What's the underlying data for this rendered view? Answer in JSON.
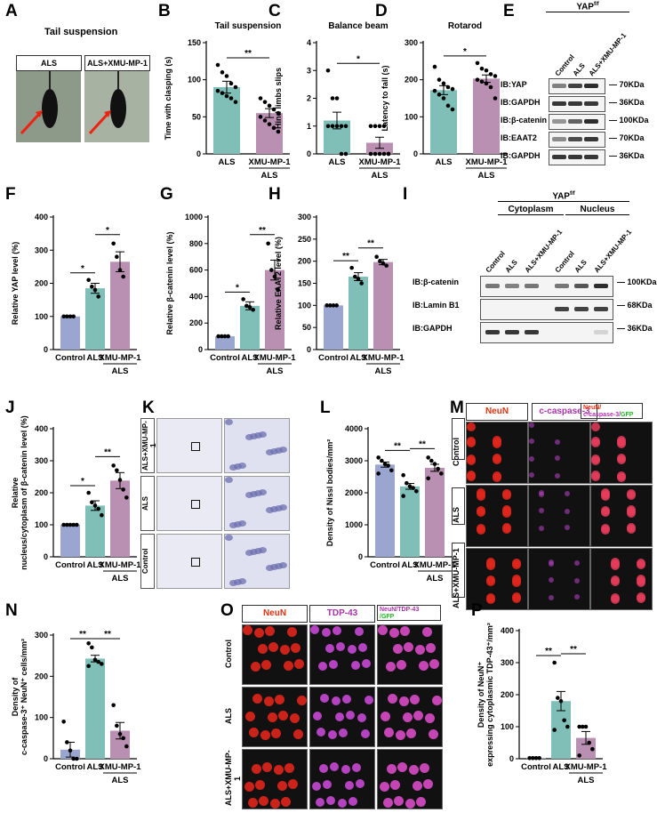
{
  "panels": {
    "A": {
      "letter": "A",
      "title": "Tail suspension",
      "labels": [
        "ALS",
        "ALS+XMU-MP-1"
      ]
    },
    "B": {
      "letter": "B",
      "chart_data": {
        "type": "bar",
        "title": "Tail suspension",
        "ylabel": "Time with clasping (s)",
        "categories": [
          "ALS",
          "XMU-MP-1"
        ],
        "group_label": "ALS",
        "values": [
          90,
          55
        ],
        "sem": [
          8,
          6
        ],
        "ylim": [
          0,
          150
        ],
        "yticks": [
          0,
          50,
          100,
          150
        ],
        "points": [
          [
            120,
            110,
            105,
            95,
            90,
            85,
            82,
            78,
            75,
            70
          ],
          [
            75,
            70,
            65,
            60,
            55,
            50,
            45,
            40,
            35,
            30
          ]
        ],
        "significance": [
          {
            "pair": [
              0,
              1
            ],
            "text": "**"
          }
        ],
        "colors": [
          "#7fbfb8",
          "#b98fb2"
        ]
      }
    },
    "C": {
      "letter": "C",
      "chart_data": {
        "type": "bar",
        "title": "Balance beam",
        "ylabel": "Hind limbs slips",
        "categories": [
          "ALS",
          "XMU-MP-1"
        ],
        "group_label": "ALS",
        "values": [
          1.2,
          0.4
        ],
        "sem": [
          0.3,
          0.2
        ],
        "ylim": [
          0,
          4
        ],
        "yticks": [
          0,
          1,
          2,
          3,
          4
        ],
        "points": [
          [
            3,
            2,
            2,
            1,
            1,
            1,
            1,
            1,
            0,
            0
          ],
          [
            1,
            1,
            1,
            1,
            0,
            0,
            0,
            0,
            0,
            0
          ]
        ],
        "significance": [
          {
            "pair": [
              0,
              1
            ],
            "text": "*"
          }
        ],
        "colors": [
          "#7fbfb8",
          "#b98fb2"
        ]
      }
    },
    "D": {
      "letter": "D",
      "chart_data": {
        "type": "bar",
        "title": "Rotarod",
        "ylabel": "Latency to fall (s)",
        "categories": [
          "ALS",
          "XMU-MP-1"
        ],
        "group_label": "ALS",
        "values": [
          172,
          203
        ],
        "sem": [
          12,
          10
        ],
        "ylim": [
          0,
          300
        ],
        "yticks": [
          0,
          100,
          200,
          300
        ],
        "points": [
          [
            235,
            200,
            190,
            180,
            175,
            170,
            160,
            150,
            130,
            120
          ],
          [
            245,
            230,
            225,
            215,
            210,
            200,
            195,
            190,
            180,
            150
          ]
        ],
        "significance": [
          {
            "pair": [
              0,
              1
            ],
            "text": "*"
          }
        ],
        "colors": [
          "#7fbfb8",
          "#b98fb2"
        ]
      }
    },
    "E": {
      "letter": "E",
      "header": "YAP",
      "header_sup": "f/f",
      "lanes": [
        "Control",
        "ALS",
        "ALS+XMU-MP-1"
      ],
      "rows": [
        {
          "ib": "IB:YAP",
          "size": "70KDa",
          "bands": [
            0.55,
            0.85,
            0.95
          ]
        },
        {
          "ib": "IB:GAPDH",
          "size": "36KDa",
          "bands": [
            0.9,
            0.9,
            0.9
          ]
        },
        {
          "ib": "IB:β-catenin",
          "size": "100KDa",
          "bands": [
            0.45,
            0.7,
            0.95
          ]
        },
        {
          "ib": "IB:EAAT2",
          "size": "70KDa",
          "bands": [
            0.5,
            0.8,
            0.9
          ]
        },
        {
          "ib": "IB:GAPDH",
          "size": "36KDa",
          "bands": [
            0.9,
            0.9,
            0.9
          ]
        }
      ]
    },
    "F": {
      "letter": "F",
      "chart_data": {
        "type": "bar",
        "ylabel": "Relative YAP level (%)",
        "categories": [
          "Control",
          "ALS",
          "XMU-MP-1"
        ],
        "group_label": "ALS",
        "values": [
          100,
          185,
          265
        ],
        "sem": [
          0,
          15,
          30
        ],
        "ylim": [
          0,
          400
        ],
        "yticks": [
          0,
          100,
          200,
          300,
          400
        ],
        "points": [
          [
            100,
            100,
            100,
            100
          ],
          [
            210,
            190,
            180,
            160
          ],
          [
            320,
            280,
            240,
            220
          ]
        ],
        "significance": [
          {
            "pair": [
              0,
              1
            ],
            "text": "*"
          },
          {
            "pair": [
              1,
              2
            ],
            "text": "*"
          }
        ],
        "colors": [
          "#9aa6cf",
          "#7fbfb8",
          "#b98fb2"
        ]
      }
    },
    "G": {
      "letter": "G",
      "chart_data": {
        "type": "bar",
        "ylabel": "Relative β-catenin level (%)",
        "categories": [
          "Control",
          "ALS",
          "XMU-MP-1"
        ],
        "group_label": "ALS",
        "values": [
          100,
          330,
          600
        ],
        "sem": [
          0,
          30,
          75
        ],
        "ylim": [
          0,
          1000
        ],
        "yticks": [
          0,
          200,
          400,
          600,
          800,
          1000
        ],
        "points": [
          [
            100,
            100,
            100,
            100
          ],
          [
            380,
            330,
            320,
            300
          ],
          [
            800,
            600,
            550,
            450
          ]
        ],
        "significance": [
          {
            "pair": [
              0,
              1
            ],
            "text": "*"
          },
          {
            "pair": [
              1,
              2
            ],
            "text": "**"
          }
        ],
        "colors": [
          "#9aa6cf",
          "#7fbfb8",
          "#b98fb2"
        ]
      }
    },
    "H": {
      "letter": "H",
      "chart_data": {
        "type": "bar",
        "ylabel": "Relative EAAT2 level (%)",
        "categories": [
          "Control",
          "ALS",
          "XMU-MP-1"
        ],
        "group_label": "ALS",
        "values": [
          100,
          165,
          198
        ],
        "sem": [
          0,
          9,
          6
        ],
        "ylim": [
          0,
          300
        ],
        "yticks": [
          0,
          50,
          100,
          150,
          200,
          250,
          300
        ],
        "points": [
          [
            100,
            100,
            100,
            100
          ],
          [
            185,
            165,
            160,
            150
          ],
          [
            210,
            200,
            195,
            190
          ]
        ],
        "significance": [
          {
            "pair": [
              0,
              1
            ],
            "text": "**"
          },
          {
            "pair": [
              1,
              2
            ],
            "text": "**"
          }
        ],
        "colors": [
          "#9aa6cf",
          "#7fbfb8",
          "#b98fb2"
        ]
      }
    },
    "I": {
      "letter": "I",
      "header": "YAP",
      "header_sup": "f/f",
      "groups": [
        "Cytoplasm",
        "Nucleus"
      ],
      "lanes": [
        "Control",
        "ALS",
        "ALS+XMU-MP-1",
        "Control",
        "ALS",
        "ALS+XMU-MP-1"
      ],
      "rows": [
        {
          "ib": "IB:β-catenin",
          "size": "100KDa",
          "bands": [
            0.6,
            0.55,
            0.6,
            0.6,
            0.75,
            0.95
          ]
        },
        {
          "ib": "IB:Lamin B1",
          "size": "68KDa",
          "bands": [
            0,
            0,
            0,
            0.85,
            0.85,
            0.85
          ]
        },
        {
          "ib": "IB:GAPDH",
          "size": "36KDa",
          "bands": [
            0.9,
            0.9,
            0.9,
            0,
            0,
            0.15
          ]
        }
      ]
    },
    "J": {
      "letter": "J",
      "chart_data": {
        "type": "bar",
        "ylabel": "Relative nucleus/cytoplasm of β-catenin level (%)",
        "categories": [
          "Control",
          "ALS",
          "XMU-MP-1"
        ],
        "group_label": "ALS",
        "values": [
          100,
          160,
          238
        ],
        "sem": [
          0,
          15,
          25
        ],
        "ylim": [
          0,
          400
        ],
        "yticks": [
          0,
          100,
          200,
          300,
          400
        ],
        "points": [
          [
            100,
            100,
            100,
            100,
            100
          ],
          [
            200,
            170,
            160,
            150,
            130
          ],
          [
            285,
            270,
            240,
            210,
            185
          ]
        ],
        "significance": [
          {
            "pair": [
              0,
              1
            ],
            "text": "*"
          },
          {
            "pair": [
              1,
              2
            ],
            "text": "**"
          }
        ],
        "colors": [
          "#9aa6cf",
          "#7fbfb8",
          "#b98fb2"
        ]
      }
    },
    "K": {
      "letter": "K",
      "rows": [
        "ALS+XMU-MP-1",
        "ALS",
        "Control"
      ]
    },
    "L": {
      "letter": "L",
      "chart_data": {
        "type": "bar",
        "ylabel": "Density of Nissl bodies/mm²",
        "categories": [
          "Control",
          "ALS",
          "XMU-MP-1"
        ],
        "group_label": "ALS",
        "values": [
          2880,
          2200,
          2780
        ],
        "sem": [
          80,
          90,
          110
        ],
        "ylim": [
          0,
          4000
        ],
        "yticks": [
          0,
          1000,
          2000,
          3000,
          4000
        ],
        "points": [
          [
            3100,
            3000,
            2900,
            2850,
            2700,
            2600
          ],
          [
            2550,
            2300,
            2200,
            2150,
            2050,
            1900
          ],
          [
            3100,
            3000,
            2900,
            2750,
            2600,
            2450
          ]
        ],
        "significance": [
          {
            "pair": [
              0,
              1
            ],
            "text": "**"
          },
          {
            "pair": [
              1,
              2
            ],
            "text": "**"
          }
        ],
        "colors": [
          "#9aa6cf",
          "#7fbfb8",
          "#b98fb2"
        ]
      }
    },
    "M": {
      "letter": "M",
      "cols": [
        "NeuN",
        "c-caspase-3",
        "NeuN/"
      ],
      "merge2": "c-caspase-3/",
      "merge3": "GFP",
      "rows": [
        "Control",
        "ALS",
        "ALS+XMU-MP-1"
      ]
    },
    "N": {
      "letter": "N",
      "chart_data": {
        "type": "bar",
        "ylabel": "Density of c-caspase-3⁺ NeuN⁺ cells/mm²",
        "categories": [
          "Control",
          "ALS",
          "XMU-MP-1"
        ],
        "group_label": "ALS",
        "values": [
          22,
          243,
          68
        ],
        "sem": [
          18,
          8,
          20
        ],
        "ylim": [
          0,
          300
        ],
        "yticks": [
          0,
          100,
          200,
          300
        ],
        "points": [
          [
            90,
            40,
            20,
            0,
            0
          ],
          [
            280,
            270,
            240,
            235,
            230,
            225
          ],
          [
            130,
            80,
            60,
            50,
            30
          ]
        ],
        "significance": [
          {
            "pair": [
              0,
              1
            ],
            "text": "**"
          },
          {
            "pair": [
              1,
              2
            ],
            "text": "**"
          }
        ],
        "colors": [
          "#9aa6cf",
          "#7fbfb8",
          "#b98fb2"
        ]
      }
    },
    "O": {
      "letter": "O",
      "cols": [
        "NeuN",
        "TDP-43",
        "NeuN/TDP-43"
      ],
      "merge2": "/GFP",
      "rows": [
        "Control",
        "ALS",
        "ALS+XMU-MP-1"
      ]
    },
    "P": {
      "letter": "P",
      "chart_data": {
        "type": "bar",
        "ylabel": "Density of NeuN⁺ expressing cytoplasmic TDP-43⁺/mm²",
        "categories": [
          "Control",
          "ALS",
          "XMU-MP-1"
        ],
        "group_label": "ALS",
        "values": [
          2,
          180,
          65
        ],
        "sem": [
          1,
          30,
          20
        ],
        "ylim": [
          0,
          400
        ],
        "yticks": [
          0,
          100,
          200,
          300,
          400
        ],
        "points": [
          [
            2,
            2,
            2,
            2
          ],
          [
            300,
            190,
            180,
            120,
            100,
            90
          ],
          [
            100,
            100,
            100,
            50,
            30,
            10
          ]
        ],
        "significance": [
          {
            "pair": [
              0,
              1
            ],
            "text": "**"
          },
          {
            "pair": [
              1,
              2
            ],
            "text": "**"
          }
        ],
        "colors": [
          "#9aa6cf",
          "#7fbfb8",
          "#b98fb2"
        ]
      }
    }
  }
}
